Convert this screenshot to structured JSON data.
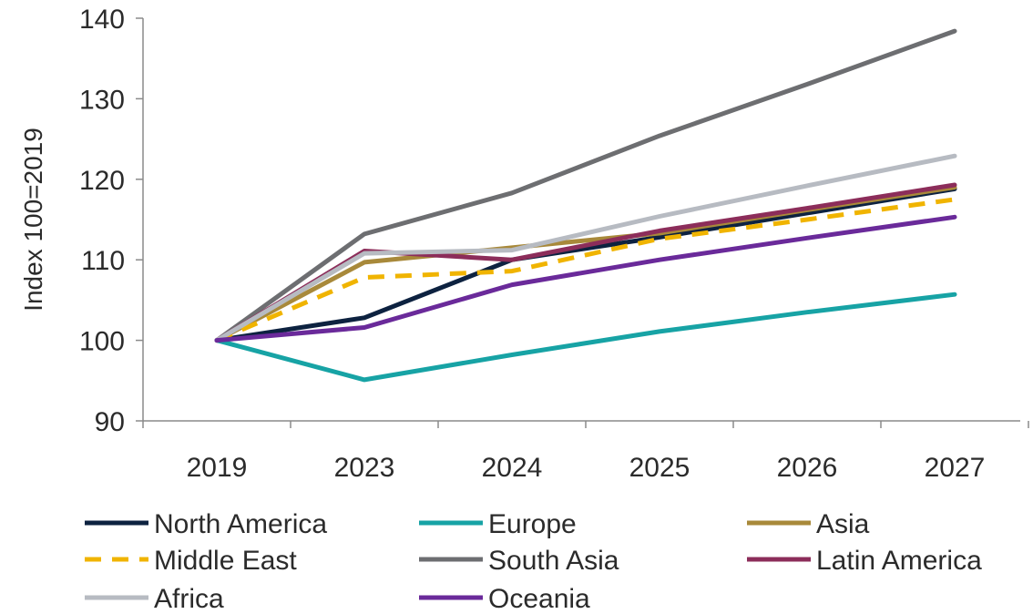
{
  "chart_data": {
    "type": "line",
    "title": "",
    "xlabel": "",
    "ylabel": "Index 100=2019",
    "categories": [
      "2019",
      "2023",
      "2024",
      "2025",
      "2026",
      "2027"
    ],
    "ylim": [
      90,
      140
    ],
    "yticks": [
      90,
      100,
      110,
      120,
      130,
      140
    ],
    "grid": false,
    "legend_position": "bottom",
    "series": [
      {
        "name": "North America",
        "color": "#0d2240",
        "dash": false,
        "values": [
          100,
          102.8,
          110.0,
          112.8,
          115.8,
          118.8
        ]
      },
      {
        "name": "Europe",
        "color": "#17a3a5",
        "dash": false,
        "values": [
          100,
          95.1,
          98.2,
          101.1,
          103.5,
          105.7
        ]
      },
      {
        "name": "Asia",
        "color": "#a8893a",
        "dash": false,
        "values": [
          100,
          109.7,
          111.5,
          113.3,
          116.2,
          119.0
        ]
      },
      {
        "name": "Middle East",
        "color": "#f0b400",
        "dash": true,
        "values": [
          100,
          107.8,
          108.6,
          112.6,
          115.0,
          117.5
        ]
      },
      {
        "name": "South Asia",
        "color": "#6d6e71",
        "dash": false,
        "values": [
          100,
          113.2,
          118.3,
          125.4,
          131.8,
          138.4
        ]
      },
      {
        "name": "Latin America",
        "color": "#8c2d5a",
        "dash": false,
        "values": [
          100,
          111.1,
          110.0,
          113.6,
          116.4,
          119.3
        ]
      },
      {
        "name": "Africa",
        "color": "#b7bbc2",
        "dash": false,
        "values": [
          100,
          110.8,
          111.2,
          115.4,
          119.2,
          122.9
        ]
      },
      {
        "name": "Oceania",
        "color": "#6a2a9a",
        "dash": false,
        "values": [
          100,
          101.6,
          106.9,
          110.0,
          112.7,
          115.3
        ]
      }
    ]
  }
}
